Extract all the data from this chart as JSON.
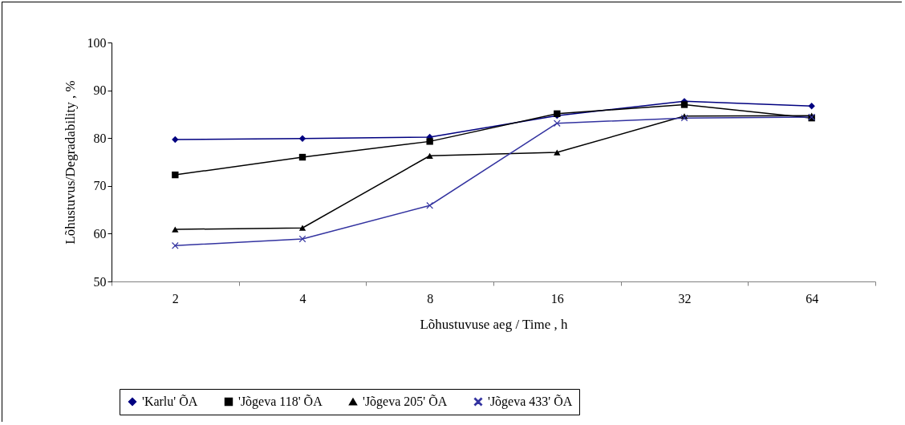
{
  "chart_data": {
    "type": "line",
    "xlabel": "Lõhustuvuse aeg / Time , h",
    "ylabel": "Lõhustuvus/Degradability , %",
    "categories": [
      "2",
      "4",
      "8",
      "16",
      "32",
      "64"
    ],
    "series": [
      {
        "name": "'Karlu' ÕA",
        "color": "#000080",
        "marker": "diamond",
        "values": [
          79.7,
          79.9,
          80.2,
          84.7,
          87.7,
          86.7
        ]
      },
      {
        "name": "'Jõgeva 118' ÕA",
        "color": "#000000",
        "marker": "square",
        "values": [
          72.3,
          76.0,
          79.3,
          85.1,
          87.0,
          84.2
        ]
      },
      {
        "name": "'Jõgeva 205' ÕA",
        "color": "#000000",
        "marker": "triangle",
        "values": [
          60.9,
          61.2,
          76.3,
          77.0,
          84.6,
          84.7
        ]
      },
      {
        "name": "'Jõgeva 433' ÕA",
        "color": "#3333a0",
        "marker": "cross",
        "values": [
          57.5,
          58.9,
          65.9,
          83.1,
          84.2,
          84.4
        ]
      }
    ],
    "ylim": [
      50,
      100
    ],
    "yticks": [
      50,
      60,
      70,
      80,
      90,
      100
    ],
    "legend": "bottom",
    "grid": false
  }
}
